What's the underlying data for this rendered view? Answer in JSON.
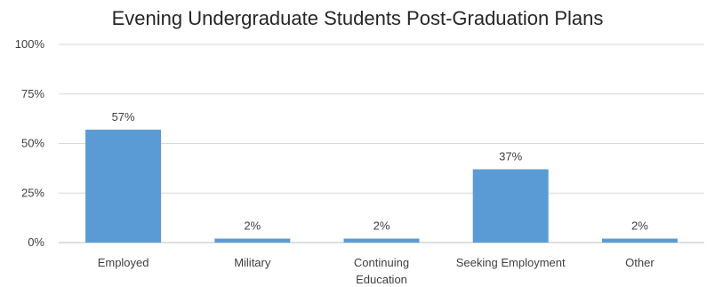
{
  "chart_data": {
    "type": "bar",
    "title": "Evening Undergraduate Students Post-Graduation Plans",
    "categories": [
      "Employed",
      "Military",
      "Continuing Education",
      "Seeking Employment",
      "Other"
    ],
    "category_lines": [
      [
        "Employed"
      ],
      [
        "Military"
      ],
      [
        "Continuing",
        "Education"
      ],
      [
        "Seeking Employment"
      ],
      [
        "Other"
      ]
    ],
    "values": [
      57,
      2,
      2,
      37,
      2
    ],
    "data_labels": [
      "57%",
      "2%",
      "2%",
      "37%",
      "2%"
    ],
    "y_ticks": [
      0,
      25,
      50,
      75,
      100
    ],
    "y_tick_labels": [
      "0%",
      "25%",
      "50%",
      "75%",
      "100%"
    ],
    "ylim": [
      0,
      100
    ],
    "xlabel": "",
    "ylabel": "",
    "grid": true,
    "legend": "none",
    "colors": {
      "bar": "#5B9BD5",
      "grid": "#D9D9D9",
      "axis": "#BFBFBF",
      "text": "#404040"
    }
  }
}
